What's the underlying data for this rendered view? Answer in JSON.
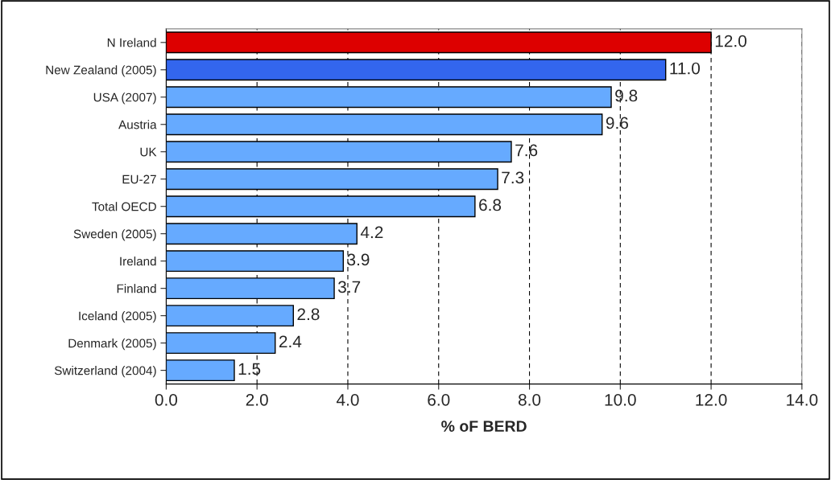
{
  "chart_data": {
    "type": "bar",
    "orientation": "horizontal",
    "xlabel": "% oF BERD",
    "categories": [
      "N Ireland",
      "New Zealand (2005)",
      "USA (2007)",
      "Austria",
      "UK",
      "EU-27",
      "Total OECD",
      "Sweden (2005)",
      "Ireland",
      "Finland",
      "Iceland (2005)",
      "Denmark (2005)",
      "Switzerland (2004)"
    ],
    "values": [
      12.0,
      11.0,
      9.8,
      9.6,
      7.6,
      7.3,
      6.8,
      4.2,
      3.9,
      3.7,
      2.8,
      2.4,
      1.5
    ],
    "value_labels": [
      "12.0",
      "11.0",
      "9.8",
      "9.6",
      "7.6",
      "7.3",
      "6.8",
      "4.2",
      "3.9",
      "3.7",
      "2.8",
      "2.4",
      "1.5"
    ],
    "colors": [
      "#dd0000",
      "#3366ee",
      "#66aaff",
      "#66aaff",
      "#66aaff",
      "#66aaff",
      "#66aaff",
      "#66aaff",
      "#66aaff",
      "#66aaff",
      "#66aaff",
      "#66aaff",
      "#66aaff"
    ],
    "xlim": [
      0,
      14
    ],
    "xticks": [
      {
        "value": 0,
        "label": "0.0"
      },
      {
        "value": 2,
        "label": "2.0"
      },
      {
        "value": 4,
        "label": "4.0"
      },
      {
        "value": 6,
        "label": "6.0"
      },
      {
        "value": 8,
        "label": "8.0"
      },
      {
        "value": 10,
        "label": "10.0"
      },
      {
        "value": 12,
        "label": "12.0"
      },
      {
        "value": 14,
        "label": "14.0"
      }
    ],
    "grid": "x"
  }
}
